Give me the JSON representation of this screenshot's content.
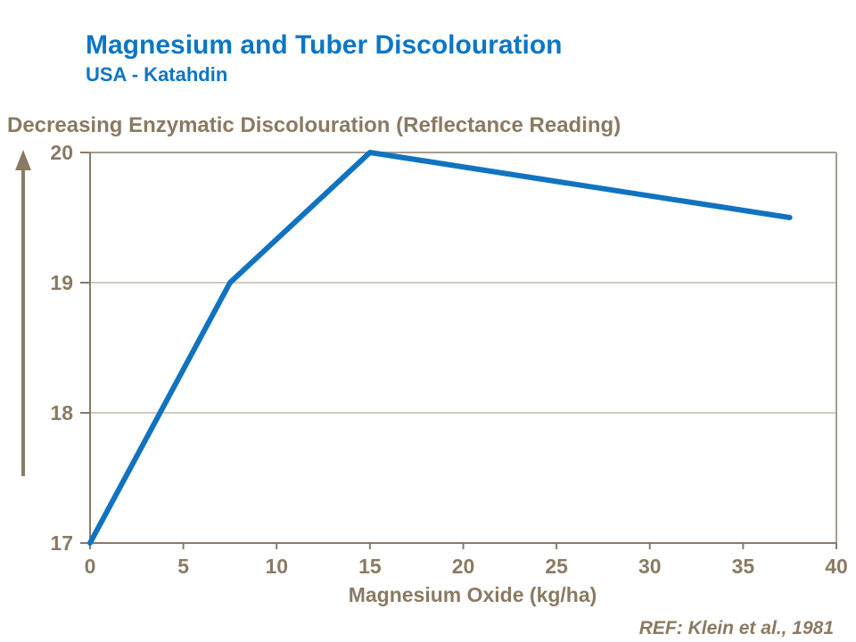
{
  "chart_data": {
    "type": "line",
    "title": "Magnesium and Tuber Discolouration",
    "subtitle": "USA - Katahdin",
    "ylabel": "Decreasing Enzymatic Discolouration (Reflectance Reading)",
    "xlabel": "Magnesium Oxide (kg/ha)",
    "reference": "REF: Klein et al., 1981",
    "points": [
      {
        "x": 0,
        "y": 17
      },
      {
        "x": 7.5,
        "y": 19
      },
      {
        "x": 15,
        "y": 20
      },
      {
        "x": 37.5,
        "y": 19.5
      }
    ],
    "xlim": [
      0,
      40
    ],
    "ylim": [
      17,
      20
    ],
    "x_ticks": [
      0,
      5,
      10,
      15,
      20,
      25,
      30,
      35,
      40
    ],
    "y_ticks": [
      17,
      18,
      19,
      20
    ],
    "grid": "horizontal",
    "legend": "none",
    "line_color": "#1173c0"
  },
  "colors": {
    "accent_blue": "#0c76c6",
    "axis_brown": "#8a7a63",
    "grid_light": "#c0b8aa",
    "frame_light": "#a69d8e"
  }
}
